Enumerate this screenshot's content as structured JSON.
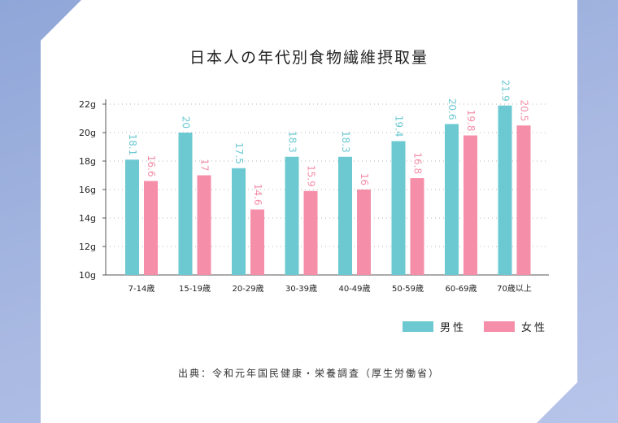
{
  "chart_data": {
    "type": "bar",
    "title": "日本人の年代別食物繊維摂取量",
    "categories": [
      "7-14歳",
      "15-19歳",
      "20-29歳",
      "30-39歳",
      "40-49歳",
      "50-59歳",
      "60-69歳",
      "70歳以上"
    ],
    "series": [
      {
        "name": "男性",
        "color": "#6cc9d2",
        "values": [
          18.1,
          20,
          17.5,
          18.3,
          18.3,
          19.4,
          20.6,
          21.9
        ]
      },
      {
        "name": "女性",
        "color": "#f48ea9",
        "values": [
          16.6,
          17,
          14.6,
          15.9,
          16,
          16.8,
          19.8,
          20.5
        ]
      }
    ],
    "ylim": [
      10,
      22
    ],
    "yticks": [
      "10g",
      "12g",
      "14g",
      "16g",
      "18g",
      "20g",
      "22g"
    ],
    "grid": true,
    "legend": "bottom-right",
    "source": "出典：令和元年国民健康・栄養調査（厚生労働省）"
  }
}
